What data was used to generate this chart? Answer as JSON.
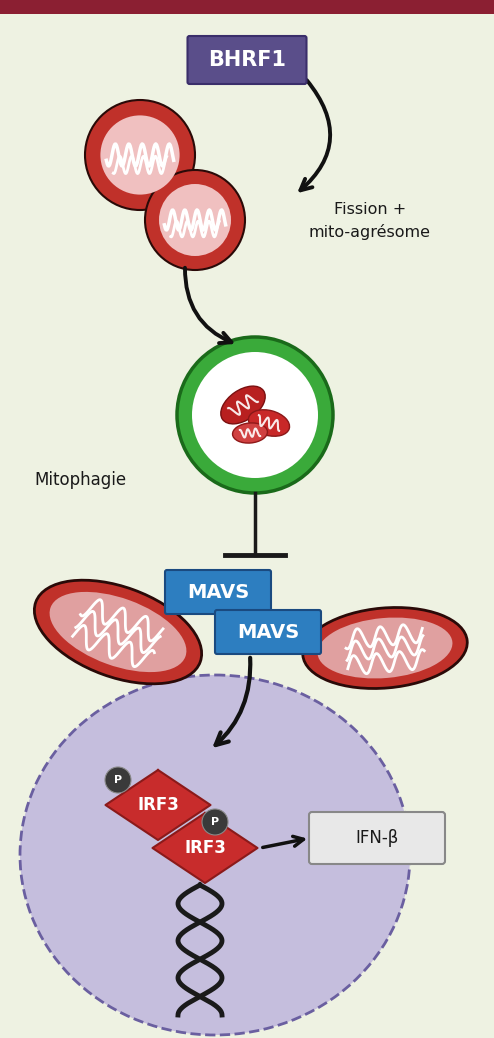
{
  "bg_color": "#eef2e2",
  "border_color": "#8b1f32",
  "bhrf1_box_color": "#5a4e8a",
  "bhrf1_border_color": "#3a2e6a",
  "mavs_box_color": "#2d7ec0",
  "mito_outer": "#c0312a",
  "mito_inner": "#e8a0a0",
  "mito_white": "#ffffff",
  "auto_ring": "#3aaa3a",
  "auto_bg": "#ffffff",
  "auto_content": "#c03030",
  "nucleus_fill": "#c5bedd",
  "nucleus_edge": "#6a5fa0",
  "irf3_color": "#c82c2c",
  "irf3_edge": "#8b1a1a",
  "p_fill": "#3a3a3a",
  "ifn_box": "#e8e8e8",
  "ifn_border": "#888888",
  "text_dark": "#1a1a1a",
  "text_gray": "#444444",
  "arrow_color": "#111111",
  "bhrf1_label": "BHRF1",
  "mavs_label": "MAVS",
  "mitophagie_label": "Mitophagie",
  "fission_line1": "Fission +",
  "fission_line2": "mito-agrésome",
  "irf3_label": "IRF3",
  "ifn_label": "IFN-β",
  "p_label": "P"
}
